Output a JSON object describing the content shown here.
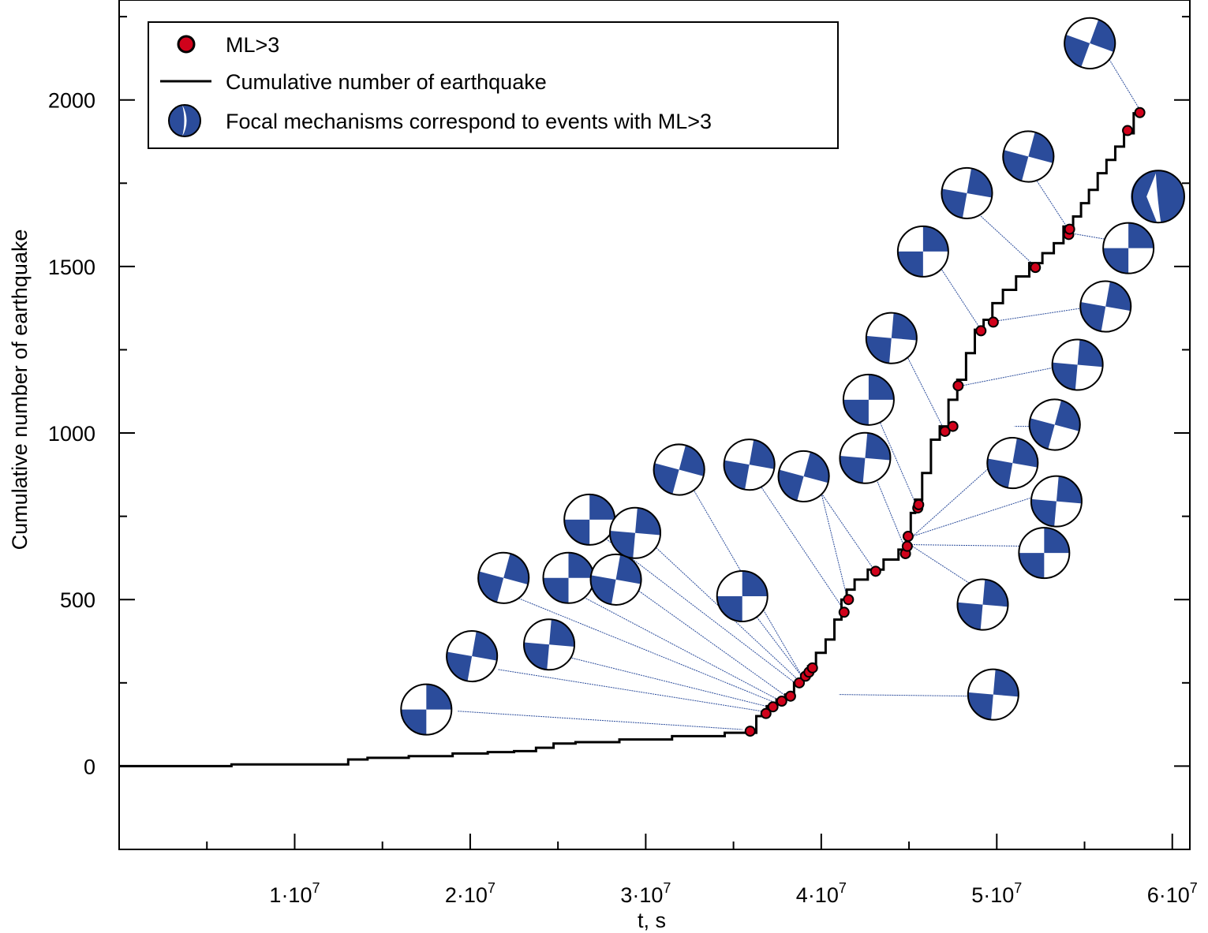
{
  "chart_data": {
    "type": "line",
    "xlabel": "t, s",
    "ylabel": "Cumulative number of earthquake",
    "xlim": [
      0,
      61000000
    ],
    "ylim": [
      -250,
      2300
    ],
    "x_ticks": [
      {
        "value": 10000000,
        "mant": "1",
        "exp": "7"
      },
      {
        "value": 20000000,
        "mant": "2",
        "exp": "7"
      },
      {
        "value": 30000000,
        "mant": "3",
        "exp": "7"
      },
      {
        "value": 40000000,
        "mant": "4",
        "exp": "7"
      },
      {
        "value": 50000000,
        "mant": "5",
        "exp": "7"
      },
      {
        "value": 60000000,
        "mant": "6",
        "exp": "7"
      }
    ],
    "x_minor_ticks": [
      5000000,
      15000000,
      25000000,
      35000000,
      45000000,
      55000000
    ],
    "y_ticks": [
      {
        "value": 0,
        "label": "0"
      },
      {
        "value": 500,
        "label": "500"
      },
      {
        "value": 1000,
        "label": "1000"
      },
      {
        "value": 1500,
        "label": "1500"
      },
      {
        "value": 2000,
        "label": "2000"
      }
    ],
    "y_minor_ticks": [
      250,
      750,
      1250,
      1750,
      2250
    ],
    "legend_placement": "top-left",
    "legend": {
      "markers": "ML>3",
      "line": "Cumulative number of earthquake",
      "mechanisms": "Focal mechanisms correspond to events with ML>3"
    },
    "colors": {
      "marker_fill": "#d0021b",
      "mechanism_fill": "#2b4c9b",
      "connector": "#2b4c9b",
      "line": "#000000"
    },
    "series": [
      {
        "name": "Cumulative number of earthquake",
        "kind": "line",
        "x": [
          0,
          12800000,
          13300000,
          15000000,
          18000000,
          20000000,
          22000000,
          23000000,
          24500000,
          25000000,
          27000000,
          30000000,
          33000000,
          36000000,
          36600000,
          37200000,
          37700000,
          38200000,
          38700000,
          39100000,
          39400000,
          40000000,
          40500000,
          41000000,
          41300000,
          41600000,
          42200000,
          43100000,
          44000000,
          44800000,
          45000000,
          45200000,
          45500000,
          46000000,
          46500000,
          47000000,
          47500000,
          48000000,
          48500000,
          49000000,
          49500000,
          50000000,
          50700000,
          51500000,
          52200000,
          53000000,
          53500000,
          54100000,
          54600000,
          55000000,
          55500000,
          56000000,
          56500000,
          57000000,
          57500000,
          58100000
        ],
        "y": [
          0,
          5,
          20,
          25,
          30,
          38,
          42,
          45,
          55,
          68,
          72,
          80,
          90,
          100,
          150,
          180,
          200,
          215,
          250,
          275,
          300,
          340,
          380,
          440,
          500,
          530,
          560,
          590,
          620,
          650,
          700,
          760,
          800,
          880,
          980,
          1020,
          1100,
          1160,
          1240,
          1310,
          1340,
          1390,
          1430,
          1470,
          1510,
          1540,
          1570,
          1620,
          1650,
          1690,
          1730,
          1780,
          1820,
          1860,
          1900,
          1960
        ]
      },
      {
        "name": "ML>3",
        "kind": "scatter",
        "x": [
          35950000,
          36850000,
          37250000,
          37750000,
          38250000,
          38750000,
          39100000,
          39300000,
          39500000,
          41300000,
          41550000,
          43100000,
          44800000,
          44900000,
          44950000,
          45500000,
          45550000,
          47050000,
          47500000,
          47800000,
          49100000,
          49800000,
          52200000,
          54100000,
          54150000,
          57450000,
          58150000
        ],
        "y": [
          105,
          158,
          178,
          195,
          210,
          250,
          270,
          282,
          295,
          462,
          500,
          585,
          638,
          660,
          690,
          775,
          785,
          1005,
          1020,
          1142,
          1307,
          1333,
          1497,
          1596,
          1612,
          1908,
          1962
        ]
      }
    ],
    "focal_mechanisms": [
      {
        "x": 17500000,
        "y": 170,
        "rot": 0
      },
      {
        "x": 20100000,
        "y": 330,
        "rot": 10
      },
      {
        "x": 24500000,
        "y": 365,
        "rot": 5
      },
      {
        "x": 21900000,
        "y": 565,
        "rot": 15
      },
      {
        "x": 25600000,
        "y": 565,
        "rot": 0
      },
      {
        "x": 28300000,
        "y": 560,
        "rot": 10
      },
      {
        "x": 26800000,
        "y": 740,
        "rot": 0
      },
      {
        "x": 29400000,
        "y": 700,
        "rot": 5
      },
      {
        "x": 31900000,
        "y": 890,
        "rot": 15
      },
      {
        "x": 35500000,
        "y": 510,
        "rot": 0
      },
      {
        "x": 35900000,
        "y": 905,
        "rot": 10
      },
      {
        "x": 39000000,
        "y": 870,
        "rot": 15
      },
      {
        "x": 42500000,
        "y": 925,
        "rot": 5
      },
      {
        "x": 42700000,
        "y": 1100,
        "rot": 0
      },
      {
        "x": 44000000,
        "y": 1285,
        "rot": 5
      },
      {
        "x": 45800000,
        "y": 1545,
        "rot": 0
      },
      {
        "x": 48300000,
        "y": 1720,
        "rot": 10
      },
      {
        "x": 51800000,
        "y": 1830,
        "rot": 15
      },
      {
        "x": 55300000,
        "y": 2170,
        "rot": 20
      },
      {
        "x": 49200000,
        "y": 485,
        "rot": 5
      },
      {
        "x": 52700000,
        "y": 640,
        "rot": 0
      },
      {
        "x": 50900000,
        "y": 910,
        "rot": 10
      },
      {
        "x": 53400000,
        "y": 795,
        "rot": 5
      },
      {
        "x": 53300000,
        "y": 1025,
        "rot": 15
      },
      {
        "x": 54600000,
        "y": 1205,
        "rot": 5
      },
      {
        "x": 56200000,
        "y": 1380,
        "rot": 10
      },
      {
        "x": 57500000,
        "y": 1555,
        "rot": 0
      },
      {
        "x": 59200000,
        "y": 1710,
        "rot": 0,
        "style": "thin"
      },
      {
        "x": 49800000,
        "y": 215,
        "rot": 5
      }
    ],
    "connectors": [
      {
        "from": [
          19300000,
          165
        ],
        "to": [
          35500000,
          110
        ]
      },
      {
        "from": [
          21600000,
          290
        ],
        "to": [
          36600000,
          165
        ]
      },
      {
        "from": [
          25000000,
          335
        ],
        "to": [
          37000000,
          178
        ]
      },
      {
        "from": [
          22000000,
          520
        ],
        "to": [
          37400000,
          190
        ]
      },
      {
        "from": [
          26000000,
          520
        ],
        "to": [
          37600000,
          198
        ]
      },
      {
        "from": [
          29500000,
          530
        ],
        "to": [
          38000000,
          210
        ]
      },
      {
        "from": [
          27300000,
          700
        ],
        "to": [
          38500000,
          250
        ]
      },
      {
        "from": [
          30300000,
          670
        ],
        "to": [
          38700000,
          258
        ]
      },
      {
        "from": [
          32500000,
          850
        ],
        "to": [
          38900000,
          270
        ]
      },
      {
        "from": [
          36000000,
          470
        ],
        "to": [
          39000000,
          262
        ]
      },
      {
        "from": [
          36300000,
          860
        ],
        "to": [
          41300000,
          468
        ]
      },
      {
        "from": [
          40000000,
          820
        ],
        "to": [
          43000000,
          590
        ]
      },
      {
        "from": [
          40000000,
          820
        ],
        "to": [
          41500000,
          500
        ]
      },
      {
        "from": [
          43000000,
          880
        ],
        "to": [
          44800000,
          650
        ]
      },
      {
        "from": [
          43200000,
          1050
        ],
        "to": [
          45400000,
          785
        ]
      },
      {
        "from": [
          44700000,
          1250
        ],
        "to": [
          47000000,
          1010
        ]
      },
      {
        "from": [
          46500000,
          1520
        ],
        "to": [
          49100000,
          1310
        ]
      },
      {
        "from": [
          48500000,
          1680
        ],
        "to": [
          52200000,
          1500
        ]
      },
      {
        "from": [
          52000000,
          1780
        ],
        "to": [
          54100000,
          1610
        ]
      },
      {
        "from": [
          56200000,
          2140
        ],
        "to": [
          58100000,
          1975
        ]
      },
      {
        "from": [
          59000000,
          1780
        ],
        "to": [
          59800000,
          1720
        ]
      },
      {
        "from": [
          49000000,
          530
        ],
        "to": [
          44900000,
          670
        ]
      },
      {
        "from": [
          52100000,
          660
        ],
        "to": [
          45000000,
          665
        ]
      },
      {
        "from": [
          50300000,
          930
        ],
        "to": [
          45000000,
          680
        ]
      },
      {
        "from": [
          52800000,
          820
        ],
        "to": [
          45200000,
          690
        ]
      },
      {
        "from": [
          52500000,
          1020
        ],
        "to": [
          51000000,
          1020
        ]
      },
      {
        "from": [
          53600000,
          1200
        ],
        "to": [
          47800000,
          1140
        ]
      },
      {
        "from": [
          55500000,
          1380
        ],
        "to": [
          49800000,
          1335
        ]
      },
      {
        "from": [
          56400000,
          1580
        ],
        "to": [
          54200000,
          1600
        ]
      },
      {
        "from": [
          48700000,
          210
        ],
        "to": [
          41000000,
          215
        ]
      }
    ]
  }
}
